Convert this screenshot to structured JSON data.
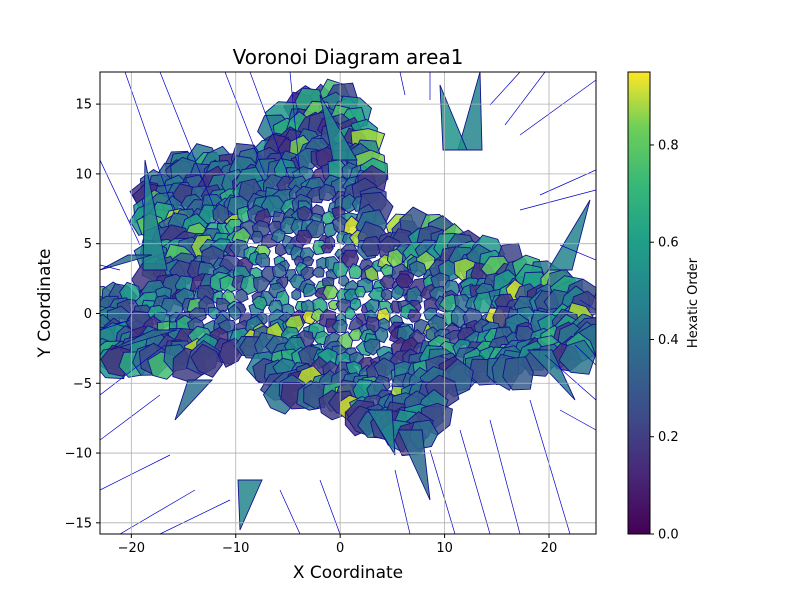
{
  "chart_data": {
    "type": "voronoi",
    "title": "Voronoi Diagram area1",
    "xlabel": "X Coordinate",
    "ylabel": "Y Coordinate",
    "xlim": [
      -23,
      24.5
    ],
    "ylim": [
      -15.8,
      17.3
    ],
    "x_ticks": [
      -20,
      -10,
      0,
      10,
      20
    ],
    "x_tick_labels": [
      "−20",
      "−10",
      "0",
      "10",
      "20"
    ],
    "y_ticks": [
      -15,
      -10,
      -5,
      0,
      5,
      10,
      15
    ],
    "y_tick_labels": [
      "−15",
      "−10",
      "−5",
      "0",
      "5",
      "10",
      "15"
    ],
    "grid": true,
    "edge_color": "#0000cc",
    "colormap": "viridis",
    "colorbar": {
      "label": "Hexatic Order",
      "range": [
        0,
        0.95
      ],
      "ticks": [
        0,
        0.2,
        0.4,
        0.6,
        0.8
      ],
      "tick_labels": [
        "0.0",
        "0.2",
        "0.4",
        "0.6",
        "0.8"
      ]
    }
  }
}
